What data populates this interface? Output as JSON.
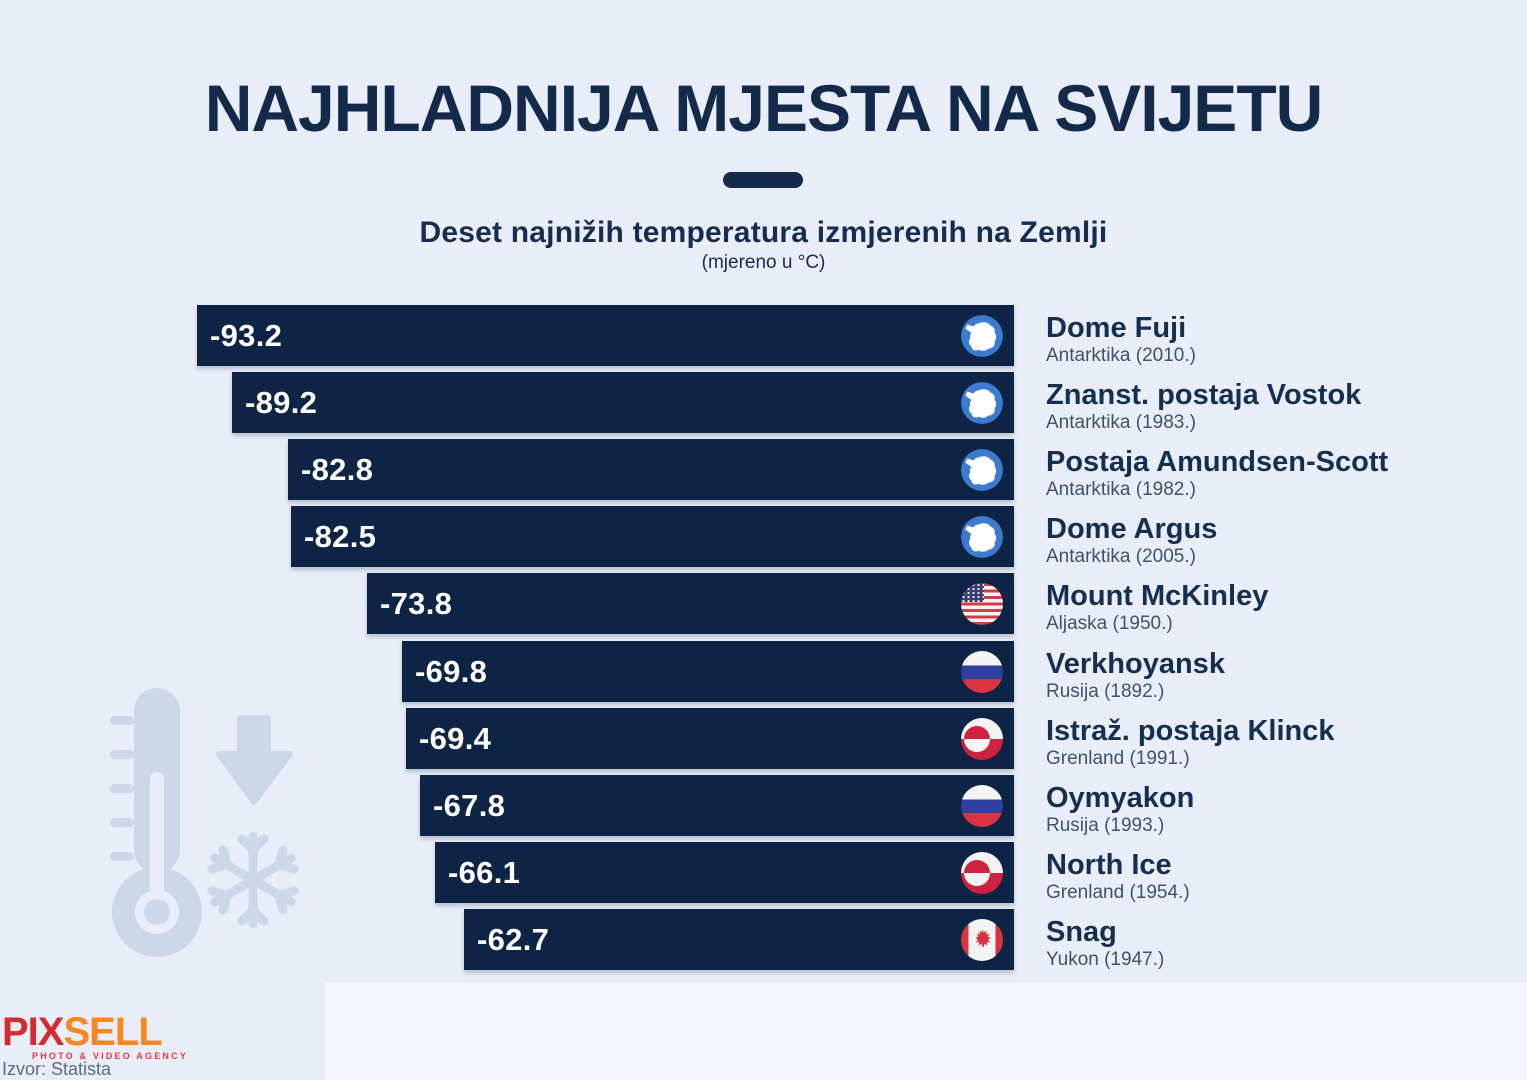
{
  "page": {
    "title": "NAJHLADNIJA MJESTA NA SVIJETU",
    "subtitle": "Deset najnižih temperatura izmjerenih na Zemlji",
    "unit_note": "(mjereno u °C)",
    "source": "Izvor: Statista"
  },
  "logo": {
    "part1": "PIX",
    "part2": "SELL",
    "tagline": "PHOTO & VIDEO AGENCY"
  },
  "colors": {
    "background": "#e8edf8",
    "bar": "#0d2444",
    "heading": "#142a4b",
    "value_text": "#ffffff",
    "place_text": "#15304f",
    "detail_text": "#3f5269",
    "watermark": "#ccd8e9",
    "antarctica_blue": "#3b7cd0",
    "logo_red": "#d22b30",
    "logo_orange": "#f6881f"
  },
  "icons": [
    "thermometer-icon",
    "down-arrow-icon",
    "snowflake-icon",
    "antarctica-flag-icon",
    "usa-flag-icon",
    "russia-flag-icon",
    "greenland-flag-icon",
    "canada-flag-icon"
  ],
  "chart_data": {
    "type": "bar",
    "orientation": "horizontal",
    "title": "NAJHLADNIJA MJESTA NA SVIJETU",
    "subtitle": "Deset najnižih temperatura izmjerenih na Zemlji",
    "unit": "°C",
    "x_domain": [
      -93.2,
      0
    ],
    "grid": false,
    "legend": false,
    "bars_right_aligned": true,
    "entries": [
      {
        "value": -93.2,
        "place": "Dome Fuji",
        "detail": "Antarktika (2010.)",
        "flag": "antarctica"
      },
      {
        "value": -89.2,
        "place": "Znanst. postaja Vostok",
        "detail": "Antarktika (1983.)",
        "flag": "antarctica"
      },
      {
        "value": -82.8,
        "place": "Postaja Amundsen-Scott",
        "detail": "Antarktika (1982.)",
        "flag": "antarctica"
      },
      {
        "value": -82.5,
        "place": "Dome Argus",
        "detail": "Antarktika (2005.)",
        "flag": "antarctica"
      },
      {
        "value": -73.8,
        "place": "Mount McKinley",
        "detail": "Aljaska (1950.)",
        "flag": "usa"
      },
      {
        "value": -69.8,
        "place": "Verkhoyansk",
        "detail": "Rusija (1892.)",
        "flag": "russia"
      },
      {
        "value": -69.4,
        "place": "Istraž. postaja Klinck",
        "detail": "Grenland (1991.)",
        "flag": "greenland"
      },
      {
        "value": -67.8,
        "place": "Oymyakon",
        "detail": "Rusija (1993.)",
        "flag": "russia"
      },
      {
        "value": -66.1,
        "place": "North Ice",
        "detail": "Grenland (1954.)",
        "flag": "greenland"
      },
      {
        "value": -62.7,
        "place": "Snag",
        "detail": "Yukon (1947.)",
        "flag": "canada"
      }
    ]
  }
}
